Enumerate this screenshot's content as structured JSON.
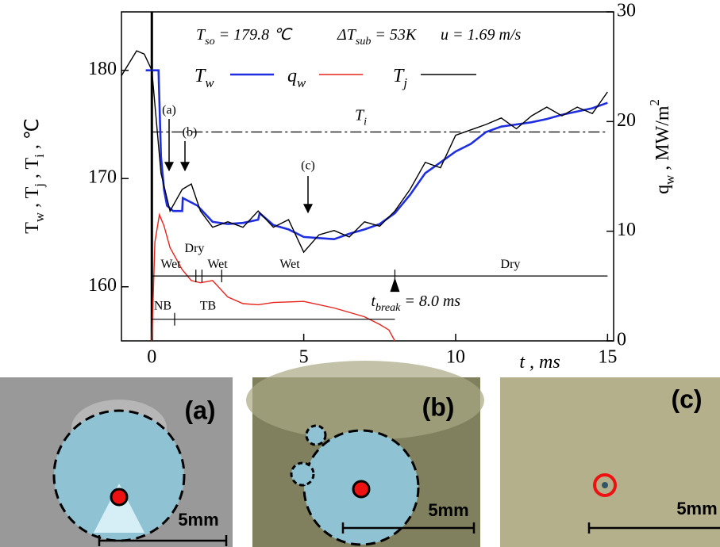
{
  "chart_data": {
    "type": "line",
    "annotations": {
      "conditions": [
        "Tso = 179.8 ℃",
        "ΔTsub = 53K",
        "u = 1.69 m/s"
      ],
      "points": [
        "(a)",
        "(b)",
        "(c)"
      ],
      "t_break": 8.0,
      "t_break_label": "tbreak = 8.0 ms"
    },
    "xlabel": "t , ms",
    "ylabel": "Tw , Tj , Ti , ℃",
    "y2label": "qw , MW/m2",
    "xlim": [
      -1,
      15.2
    ],
    "xticks": [
      0,
      5,
      10,
      15
    ],
    "ylim": [
      155,
      185.4
    ],
    "yticks": [
      160,
      170,
      180
    ],
    "y2lim": [
      0,
      30
    ],
    "y2ticks": [
      0,
      10,
      20,
      30
    ],
    "reference_line": {
      "label": "Ti",
      "value": 174.3,
      "color": "#000000"
    },
    "wetting": [
      {
        "label": "Wet",
        "start": 0,
        "end": 1.45
      },
      {
        "label": "Dry",
        "start": 1.45,
        "end": 1.65
      },
      {
        "label": "Wet",
        "start": 1.65,
        "end": 2.3
      },
      {
        "label": "Wet",
        "start": 2.3,
        "end": 8.0
      },
      {
        "label": "Dry",
        "start": 8.0,
        "end": 15
      }
    ],
    "boiling": [
      {
        "label": "NB",
        "start": 0,
        "end": 0.75
      },
      {
        "label": "TB",
        "start": 0.75,
        "end": 8.0
      }
    ],
    "series": [
      {
        "name": "Tw",
        "color": "#1f2fe0",
        "x": [
          -0.2,
          0.22,
          0.3,
          0.4,
          0.5,
          0.7,
          1.0,
          1.02,
          1.5,
          2.0,
          2.5,
          3.0,
          3.5,
          3.55,
          4.0,
          4.5,
          5.0,
          5.5,
          6.0,
          6.5,
          7.0,
          7.5,
          8.0,
          8.5,
          9.0,
          9.5,
          10.0,
          10.5,
          11.0,
          11.5,
          12.0,
          12.5,
          13.0,
          13.5,
          14.0,
          14.5,
          15.0
        ],
        "values": [
          180,
          180,
          172,
          169,
          167.5,
          167,
          167,
          168.2,
          167.5,
          166,
          165.8,
          165.9,
          166.2,
          166.8,
          165.7,
          165.3,
          164.6,
          164.5,
          164.4,
          164.9,
          165.3,
          165.8,
          166.8,
          168.5,
          170.5,
          171.5,
          172.5,
          173.2,
          174.3,
          174.8,
          175,
          175.2,
          175.5,
          175.9,
          176.2,
          176.5,
          177
        ]
      },
      {
        "name": "qw",
        "color": "#e8231c",
        "axis": "y2",
        "x": [
          0,
          0.1,
          0.25,
          0.4,
          0.6,
          0.8,
          1.0,
          1.3,
          1.6,
          2.0,
          2.5,
          3.0,
          3.5,
          4.0,
          5.0,
          6.0,
          6.5,
          7.0,
          7.5,
          7.8,
          8.0
        ],
        "values": [
          0,
          9,
          11.5,
          10.5,
          8.5,
          7.5,
          6.5,
          5.5,
          5.3,
          5.5,
          4,
          3.4,
          3.3,
          3.5,
          3.6,
          3,
          2.6,
          2.2,
          1.5,
          1,
          0
        ]
      },
      {
        "name": "Tj",
        "color": "#000000",
        "x": [
          -1,
          -0.5,
          -0.25,
          0,
          0.3,
          0.6,
          1.0,
          1.3,
          1.6,
          2.0,
          2.5,
          3.0,
          3.5,
          4.0,
          4.5,
          5.0,
          5.5,
          6.0,
          6.5,
          7.0,
          7.5,
          8.0,
          8.5,
          9.0,
          9.5,
          10.0,
          10.5,
          11.0,
          11.5,
          12.0,
          12.5,
          13.0,
          13.5,
          14.0,
          14.5,
          15.0
        ],
        "values": [
          179.5,
          181.8,
          181.5,
          180,
          170.5,
          167,
          169,
          169.5,
          167,
          165.5,
          166,
          165.5,
          167,
          165.5,
          166.2,
          163.2,
          164.8,
          165.2,
          164.6,
          166,
          165.6,
          167,
          169,
          171.5,
          171,
          174,
          174.5,
          175,
          175.6,
          174.6,
          175.8,
          176.6,
          175.8,
          176.6,
          176,
          178
        ]
      }
    ]
  },
  "photos": [
    {
      "label": "(a)",
      "scale_bar": "5mm"
    },
    {
      "label": "(b)",
      "scale_bar": "5mm"
    },
    {
      "label": "(c)",
      "scale_bar": "5mm"
    }
  ]
}
